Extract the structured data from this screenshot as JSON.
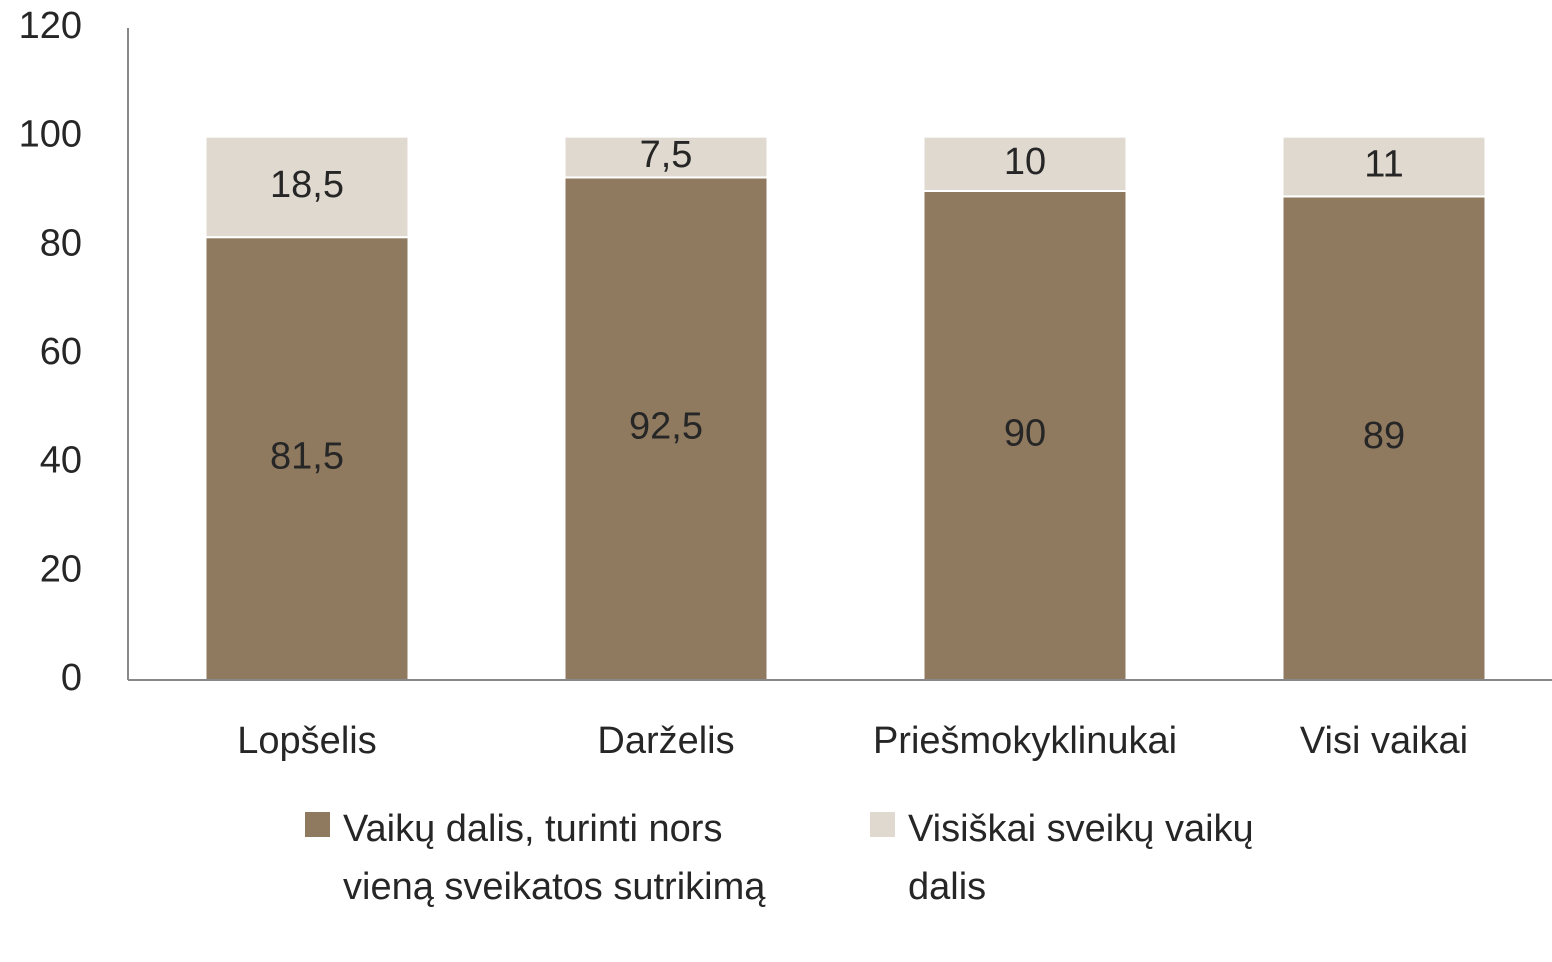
{
  "chart_data": {
    "type": "stacked_bar",
    "categories": [
      "Lopšelis",
      "Darželis",
      "Priešmokyklinukai",
      "Visi vaikai"
    ],
    "series": [
      {
        "name": "Vaikų dalis, turinti nors vieną sveikatos sutrikimą",
        "color": "#8f7a60",
        "values": [
          81.5,
          92.5,
          90,
          89
        ],
        "value_labels": [
          "81,5",
          "92,5",
          "90",
          "89"
        ]
      },
      {
        "name": "Visiškai sveikų vaikų dalis",
        "color": "#e0d9cf",
        "values": [
          18.5,
          7.5,
          10,
          11
        ],
        "value_labels": [
          "18,5",
          "7,5",
          "10",
          "11"
        ]
      }
    ],
    "ylim": [
      0,
      120
    ],
    "yticks": [
      0,
      20,
      40,
      60,
      80,
      100,
      120
    ],
    "grid": false,
    "legend": "bottom"
  }
}
